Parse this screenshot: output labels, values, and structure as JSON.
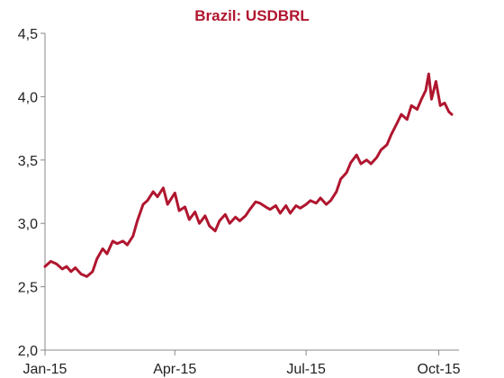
{
  "chart_data": {
    "type": "line",
    "title": "Brazil: USDBRL",
    "xlabel": "",
    "ylabel": "",
    "ylim": [
      2.0,
      4.5
    ],
    "yticks": [
      "2,0",
      "2,5",
      "3,0",
      "3,5",
      "4,0",
      "4,5"
    ],
    "ytick_values": [
      2.0,
      2.5,
      3.0,
      3.5,
      4.0,
      4.5
    ],
    "xticks": [
      "Jan-15",
      "Apr-15",
      "Jul-15",
      "Oct-15"
    ],
    "xtick_dates": [
      "2015-01-01",
      "2015-04-01",
      "2015-07-01",
      "2015-10-01"
    ],
    "xlim": [
      "2015-01-01",
      "2015-10-15"
    ],
    "grid": false,
    "legend": "none",
    "colors": {
      "line": "#b0162f",
      "title": "#b0162f",
      "axis": "#888888"
    },
    "series": [
      {
        "x": [
          "2015-01-01",
          "2015-01-05",
          "2015-01-09",
          "2015-01-13",
          "2015-01-16",
          "2015-01-19",
          "2015-01-22",
          "2015-01-26",
          "2015-01-30",
          "2015-02-03",
          "2015-02-06",
          "2015-02-10",
          "2015-02-13",
          "2015-02-17",
          "2015-02-20",
          "2015-02-24",
          "2015-02-27",
          "2015-03-03",
          "2015-03-06",
          "2015-03-10",
          "2015-03-13",
          "2015-03-17",
          "2015-03-20",
          "2015-03-24",
          "2015-03-27",
          "2015-04-01",
          "2015-04-04",
          "2015-04-08",
          "2015-04-11",
          "2015-04-15",
          "2015-04-18",
          "2015-04-22",
          "2015-04-25",
          "2015-04-29",
          "2015-05-02",
          "2015-05-06",
          "2015-05-09",
          "2015-05-13",
          "2015-05-16",
          "2015-05-20",
          "2015-05-23",
          "2015-05-27",
          "2015-05-30",
          "2015-06-03",
          "2015-06-06",
          "2015-06-10",
          "2015-06-13",
          "2015-06-17",
          "2015-06-20",
          "2015-06-24",
          "2015-06-27",
          "2015-07-01",
          "2015-07-04",
          "2015-07-08",
          "2015-07-11",
          "2015-07-15",
          "2015-07-18",
          "2015-07-22",
          "2015-07-25",
          "2015-07-29",
          "2015-08-01",
          "2015-08-05",
          "2015-08-08",
          "2015-08-12",
          "2015-08-15",
          "2015-08-19",
          "2015-08-22",
          "2015-08-26",
          "2015-08-29",
          "2015-09-02",
          "2015-09-05",
          "2015-09-09",
          "2015-09-12",
          "2015-09-16",
          "2015-09-19",
          "2015-09-22",
          "2015-09-24",
          "2015-09-26",
          "2015-09-29",
          "2015-10-02",
          "2015-10-05",
          "2015-10-08",
          "2015-10-10"
        ],
        "values": [
          2.66,
          2.7,
          2.68,
          2.64,
          2.66,
          2.62,
          2.65,
          2.6,
          2.58,
          2.62,
          2.72,
          2.8,
          2.76,
          2.86,
          2.84,
          2.86,
          2.83,
          2.9,
          3.02,
          3.15,
          3.18,
          3.25,
          3.21,
          3.28,
          3.15,
          3.24,
          3.1,
          3.13,
          3.03,
          3.09,
          3.0,
          3.06,
          2.98,
          2.94,
          3.02,
          3.07,
          3.0,
          3.05,
          3.02,
          3.06,
          3.11,
          3.17,
          3.16,
          3.13,
          3.11,
          3.14,
          3.08,
          3.14,
          3.08,
          3.14,
          3.12,
          3.15,
          3.18,
          3.16,
          3.2,
          3.15,
          3.18,
          3.25,
          3.35,
          3.4,
          3.48,
          3.54,
          3.47,
          3.5,
          3.47,
          3.52,
          3.58,
          3.62,
          3.7,
          3.79,
          3.86,
          3.82,
          3.93,
          3.9,
          3.98,
          4.05,
          4.18,
          3.98,
          4.12,
          3.93,
          3.95,
          3.88,
          3.86
        ]
      }
    ]
  }
}
